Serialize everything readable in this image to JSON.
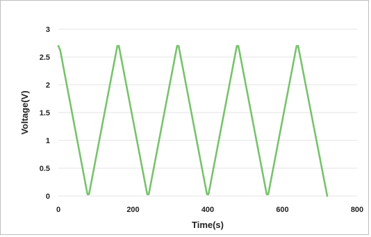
{
  "chart_data": {
    "type": "line",
    "title": "",
    "xlabel": "Time(s)",
    "ylabel": "Voltage(V)",
    "xlim": [
      0,
      800
    ],
    "ylim": [
      0,
      3
    ],
    "x_ticks": [
      "0",
      "200",
      "400",
      "600",
      "800"
    ],
    "y_ticks": [
      "0",
      "0.5",
      "1",
      "1.5",
      "2",
      "2.5",
      "3"
    ],
    "grid": "horizontal",
    "legend": "none",
    "series": [
      {
        "color": "#77c36b",
        "x": [
          0,
          5,
          78,
          82,
          158,
          162,
          238,
          242,
          318,
          322,
          398,
          402,
          478,
          482,
          558,
          562,
          638,
          642,
          720
        ],
        "y": [
          2.7,
          2.62,
          0.03,
          0.03,
          2.7,
          2.7,
          0.03,
          0.03,
          2.7,
          2.7,
          0.03,
          0.03,
          2.7,
          2.7,
          0.03,
          0.03,
          2.7,
          2.7,
          0.0
        ]
      }
    ]
  }
}
